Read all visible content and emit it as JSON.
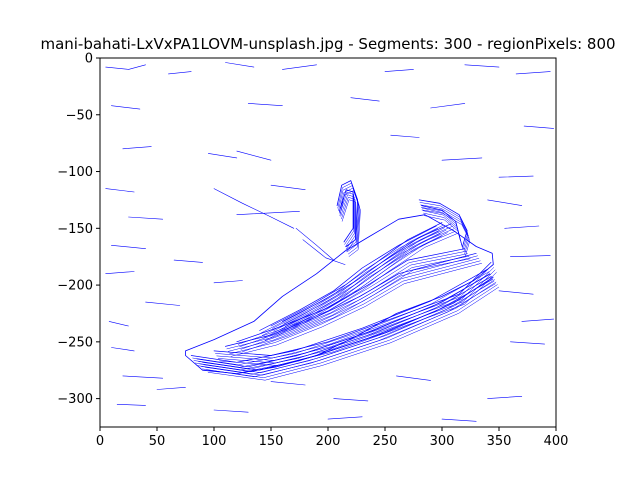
{
  "chart_data": {
    "type": "line",
    "title": "mani-bahati-LxVxPA1LOVM-unsplash.jpg - Segments: 300 - regionPixels: 800",
    "xlabel": "",
    "ylabel": "",
    "xlim": [
      0,
      400
    ],
    "ylim": [
      -325,
      0
    ],
    "x_ticks": [
      "0",
      "50",
      "100",
      "150",
      "200",
      "250",
      "300",
      "350",
      "400"
    ],
    "y_ticks": [
      "0",
      "−50",
      "−100",
      "−150",
      "−200",
      "−250",
      "−300"
    ],
    "x_tick_values": [
      0,
      50,
      100,
      150,
      200,
      250,
      300,
      350,
      400
    ],
    "y_tick_values": [
      0,
      -50,
      -100,
      -150,
      -200,
      -250,
      -300
    ],
    "grid": false,
    "line_color": "#0000ff",
    "outline": [
      [
        75,
        -258
      ],
      [
        100,
        -248
      ],
      [
        135,
        -232
      ],
      [
        160,
        -210
      ],
      [
        190,
        -190
      ],
      [
        215,
        -170
      ],
      [
        235,
        -158
      ],
      [
        262,
        -142
      ],
      [
        285,
        -138
      ],
      [
        310,
        -152
      ],
      [
        330,
        -166
      ],
      [
        344,
        -172
      ],
      [
        345,
        -182
      ],
      [
        328,
        -196
      ],
      [
        300,
        -210
      ],
      [
        260,
        -225
      ],
      [
        225,
        -245
      ],
      [
        190,
        -262
      ],
      [
        155,
        -272
      ],
      [
        120,
        -278
      ],
      [
        90,
        -275
      ],
      [
        75,
        -262
      ]
    ],
    "sole_lines": [
      [
        [
          80,
          -262
        ],
        [
          120,
          -268
        ],
        [
          170,
          -258
        ],
        [
          230,
          -238
        ],
        [
          290,
          -214
        ],
        [
          340,
          -186
        ]
      ],
      [
        [
          85,
          -265
        ],
        [
          130,
          -272
        ],
        [
          180,
          -260
        ],
        [
          240,
          -240
        ],
        [
          300,
          -215
        ],
        [
          342,
          -190
        ]
      ],
      [
        [
          90,
          -268
        ],
        [
          140,
          -275
        ],
        [
          190,
          -262
        ],
        [
          250,
          -242
        ],
        [
          310,
          -216
        ],
        [
          345,
          -193
        ]
      ],
      [
        [
          100,
          -258
        ],
        [
          150,
          -262
        ],
        [
          200,
          -250
        ],
        [
          255,
          -230
        ],
        [
          315,
          -208
        ],
        [
          343,
          -180
        ]
      ]
    ],
    "upper_lines": [
      [
        [
          140,
          -240
        ],
        [
          175,
          -222
        ],
        [
          205,
          -205
        ],
        [
          230,
          -185
        ],
        [
          262,
          -165
        ],
        [
          295,
          -148
        ]
      ],
      [
        [
          150,
          -236
        ],
        [
          185,
          -218
        ],
        [
          215,
          -200
        ],
        [
          240,
          -182
        ],
        [
          270,
          -160
        ],
        [
          300,
          -145
        ]
      ],
      [
        [
          160,
          -232
        ],
        [
          195,
          -214
        ],
        [
          225,
          -196
        ],
        [
          250,
          -178
        ],
        [
          280,
          -158
        ],
        [
          308,
          -146
        ]
      ],
      [
        [
          120,
          -250
        ],
        [
          160,
          -236
        ],
        [
          200,
          -220
        ],
        [
          235,
          -200
        ],
        [
          270,
          -178
        ],
        [
          320,
          -168
        ]
      ],
      [
        [
          110,
          -254
        ],
        [
          150,
          -244
        ],
        [
          190,
          -228
        ],
        [
          228,
          -210
        ],
        [
          262,
          -190
        ],
        [
          330,
          -172
        ]
      ]
    ],
    "collar_lines": [
      [
        [
          208,
          -130
        ],
        [
          212,
          -112
        ],
        [
          220,
          -108
        ],
        [
          226,
          -125
        ],
        [
          224,
          -160
        ],
        [
          216,
          -166
        ]
      ],
      [
        [
          210,
          -135
        ],
        [
          216,
          -116
        ],
        [
          222,
          -118
        ],
        [
          222,
          -150
        ],
        [
          214,
          -162
        ]
      ],
      [
        [
          280,
          -125
        ],
        [
          298,
          -128
        ],
        [
          315,
          -138
        ],
        [
          322,
          -152
        ],
        [
          318,
          -166
        ]
      ],
      [
        [
          282,
          -130
        ],
        [
          300,
          -134
        ],
        [
          312,
          -144
        ],
        [
          316,
          -160
        ]
      ]
    ],
    "background_dashes": [
      [
        [
          5,
          -8
        ],
        [
          25,
          -10
        ],
        [
          40,
          -6
        ]
      ],
      [
        [
          60,
          -14
        ],
        [
          80,
          -12
        ]
      ],
      [
        [
          110,
          -4
        ],
        [
          135,
          -8
        ]
      ],
      [
        [
          160,
          -10
        ],
        [
          190,
          -6
        ]
      ],
      [
        [
          250,
          -12
        ],
        [
          275,
          -10
        ]
      ],
      [
        [
          320,
          -6
        ],
        [
          350,
          -8
        ]
      ],
      [
        [
          365,
          -14
        ],
        [
          395,
          -12
        ]
      ],
      [
        [
          10,
          -42
        ],
        [
          35,
          -45
        ]
      ],
      [
        [
          130,
          -40
        ],
        [
          160,
          -42
        ]
      ],
      [
        [
          220,
          -35
        ],
        [
          245,
          -38
        ]
      ],
      [
        [
          290,
          -44
        ],
        [
          320,
          -40
        ]
      ],
      [
        [
          372,
          -60
        ],
        [
          398,
          -62
        ]
      ],
      [
        [
          20,
          -80
        ],
        [
          45,
          -78
        ]
      ],
      [
        [
          95,
          -84
        ],
        [
          120,
          -88
        ]
      ],
      [
        [
          300,
          -90
        ],
        [
          335,
          -88
        ]
      ],
      [
        [
          350,
          -105
        ],
        [
          380,
          -104
        ]
      ],
      [
        [
          5,
          -115
        ],
        [
          30,
          -118
        ]
      ],
      [
        [
          150,
          -112
        ],
        [
          180,
          -116
        ]
      ],
      [
        [
          340,
          -125
        ],
        [
          370,
          -130
        ]
      ],
      [
        [
          25,
          -140
        ],
        [
          55,
          -142
        ]
      ],
      [
        [
          120,
          -138
        ],
        [
          175,
          -135
        ]
      ],
      [
        [
          355,
          -150
        ],
        [
          385,
          -148
        ]
      ],
      [
        [
          10,
          -165
        ],
        [
          40,
          -168
        ]
      ],
      [
        [
          65,
          -178
        ],
        [
          90,
          -180
        ]
      ],
      [
        [
          360,
          -175
        ],
        [
          395,
          -174
        ]
      ],
      [
        [
          5,
          -190
        ],
        [
          30,
          -188
        ]
      ],
      [
        [
          100,
          -198
        ],
        [
          125,
          -196
        ]
      ],
      [
        [
          350,
          -205
        ],
        [
          380,
          -208
        ]
      ],
      [
        [
          40,
          -215
        ],
        [
          70,
          -218
        ]
      ],
      [
        [
          370,
          -232
        ],
        [
          398,
          -230
        ]
      ],
      [
        [
          8,
          -232
        ],
        [
          25,
          -236
        ]
      ],
      [
        [
          10,
          -255
        ],
        [
          30,
          -258
        ]
      ],
      [
        [
          360,
          -250
        ],
        [
          390,
          -252
        ]
      ],
      [
        [
          20,
          -280
        ],
        [
          55,
          -282
        ]
      ],
      [
        [
          150,
          -285
        ],
        [
          180,
          -288
        ]
      ],
      [
        [
          260,
          -280
        ],
        [
          290,
          -284
        ]
      ],
      [
        [
          340,
          -300
        ],
        [
          370,
          -298
        ]
      ],
      [
        [
          15,
          -305
        ],
        [
          40,
          -306
        ]
      ],
      [
        [
          100,
          -310
        ],
        [
          130,
          -312
        ]
      ],
      [
        [
          200,
          -318
        ],
        [
          230,
          -316
        ]
      ],
      [
        [
          300,
          -318
        ],
        [
          330,
          -320
        ]
      ],
      [
        [
          50,
          -292
        ],
        [
          75,
          -290
        ]
      ],
      [
        [
          205,
          -300
        ],
        [
          235,
          -302
        ]
      ],
      [
        [
          120,
          -82
        ],
        [
          150,
          -90
        ]
      ],
      [
        [
          255,
          -68
        ],
        [
          280,
          -70
        ]
      ]
    ],
    "faint_shape": [
      [
        [
          100,
          -115
        ],
        [
          125,
          -128
        ],
        [
          150,
          -140
        ],
        [
          170,
          -150
        ]
      ],
      [
        [
          172,
          -150
        ],
        [
          190,
          -165
        ],
        [
          205,
          -178
        ]
      ],
      [
        [
          178,
          -160
        ],
        [
          198,
          -176
        ],
        [
          215,
          -182
        ]
      ]
    ]
  }
}
